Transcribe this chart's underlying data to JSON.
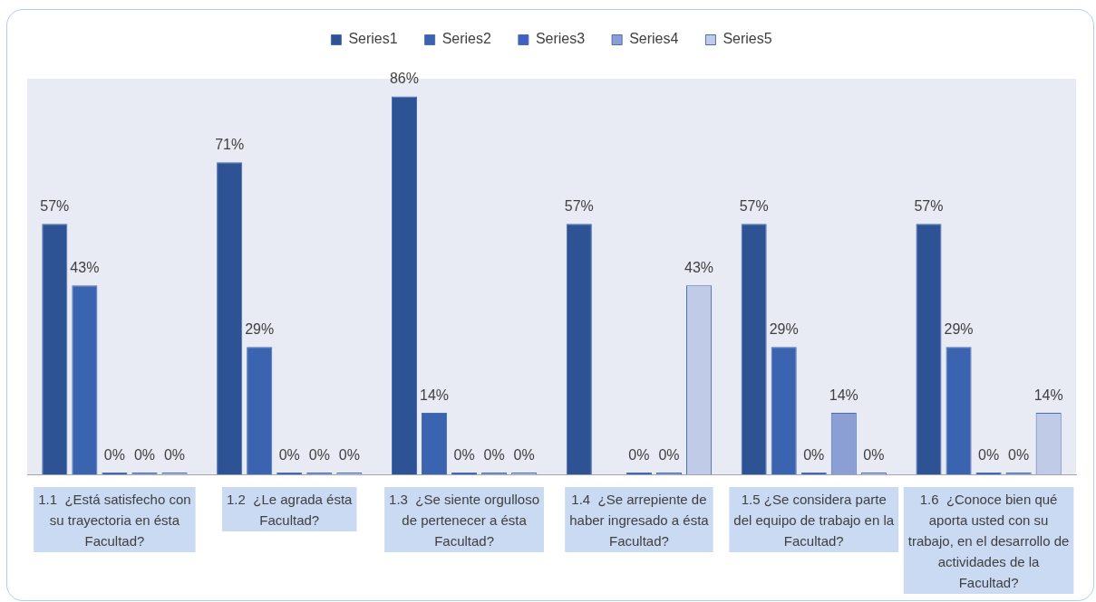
{
  "chart_data": {
    "type": "bar",
    "categories": [
      "1.1  ¿Está satisfecho con su trayectoria en ésta Facultad?",
      "1.2  ¿Le agrada ésta Facultad?",
      "1.3  ¿Se siente orgulloso de pertenecer a ésta Facultad?",
      "1.4  ¿Se arrepiente de haber ingresado a ésta Facultad?",
      "1.5 ¿Se considera parte del equipo de trabajo en la Facultad?",
      "1.6  ¿Conoce bien qué aporta usted con su trabajo, en el desarrollo de actividades de la Facultad?"
    ],
    "series": [
      {
        "name": "Series1",
        "color": "#2e5394",
        "values": [
          57,
          71,
          86,
          57,
          57,
          57
        ],
        "value_labels": [
          "57%",
          "71%",
          "86%",
          "57%",
          "57%",
          "57%"
        ]
      },
      {
        "name": "Series2",
        "color": "#3a63b0",
        "values": [
          43,
          29,
          14,
          null,
          29,
          29
        ],
        "value_labels": [
          "43%",
          "29%",
          "14%",
          null,
          "29%",
          "29%"
        ]
      },
      {
        "name": "Series3",
        "color": "#3f62c2",
        "values": [
          0,
          0,
          0,
          0,
          0,
          0
        ],
        "value_labels": [
          "0%",
          "0%",
          "0%",
          "0%",
          "0%",
          "0%"
        ]
      },
      {
        "name": "Series4",
        "color": "#8c9fd4",
        "values": [
          0,
          0,
          0,
          0,
          14,
          0
        ],
        "value_labels": [
          "0%",
          "0%",
          "0%",
          "0%",
          "14%",
          "0%"
        ]
      },
      {
        "name": "Series5",
        "color": "#c0cbe8",
        "values": [
          0,
          0,
          0,
          43,
          0,
          14
        ],
        "value_labels": [
          "0%",
          "0%",
          "0%",
          "43%",
          "0%",
          "14%"
        ]
      }
    ],
    "legend": "top",
    "tick_labels": "x"
  }
}
